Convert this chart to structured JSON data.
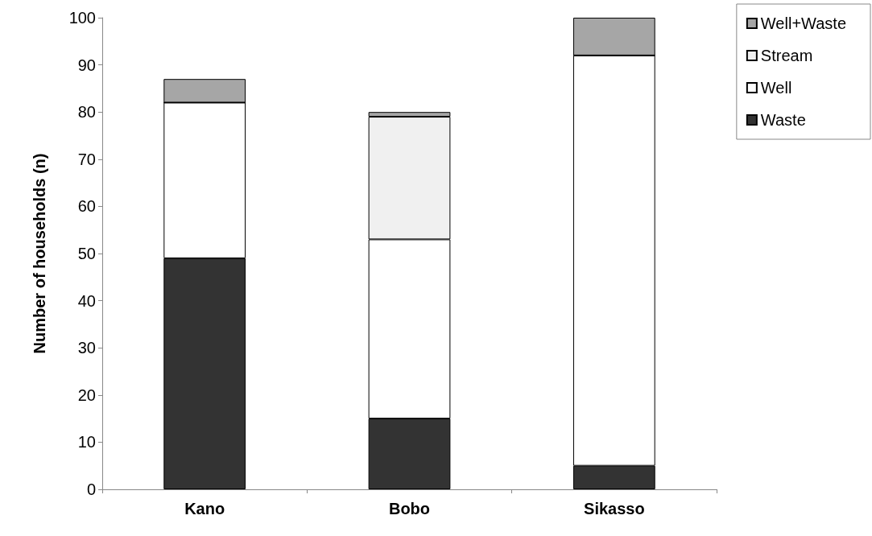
{
  "chart_data": {
    "type": "bar",
    "stacked": true,
    "ylabel": "Number of households (n)",
    "categories": [
      "Kano",
      "Bobo",
      "Sikasso"
    ],
    "series": [
      {
        "name": "Waste",
        "color": "#333333",
        "values": [
          49,
          15,
          5
        ]
      },
      {
        "name": "Well",
        "color": "#ffffff",
        "values": [
          33,
          38,
          87
        ]
      },
      {
        "name": "Stream",
        "color": "#f0f0f0",
        "values": [
          0,
          26,
          0
        ]
      },
      {
        "name": "Well+Waste",
        "color": "#a6a6a6",
        "values": [
          5,
          1,
          8
        ]
      }
    ],
    "ylim": [
      0,
      100
    ],
    "yticks": [
      0,
      10,
      20,
      30,
      40,
      50,
      60,
      70,
      80,
      90,
      100
    ],
    "grid": false,
    "legend": "top right"
  }
}
